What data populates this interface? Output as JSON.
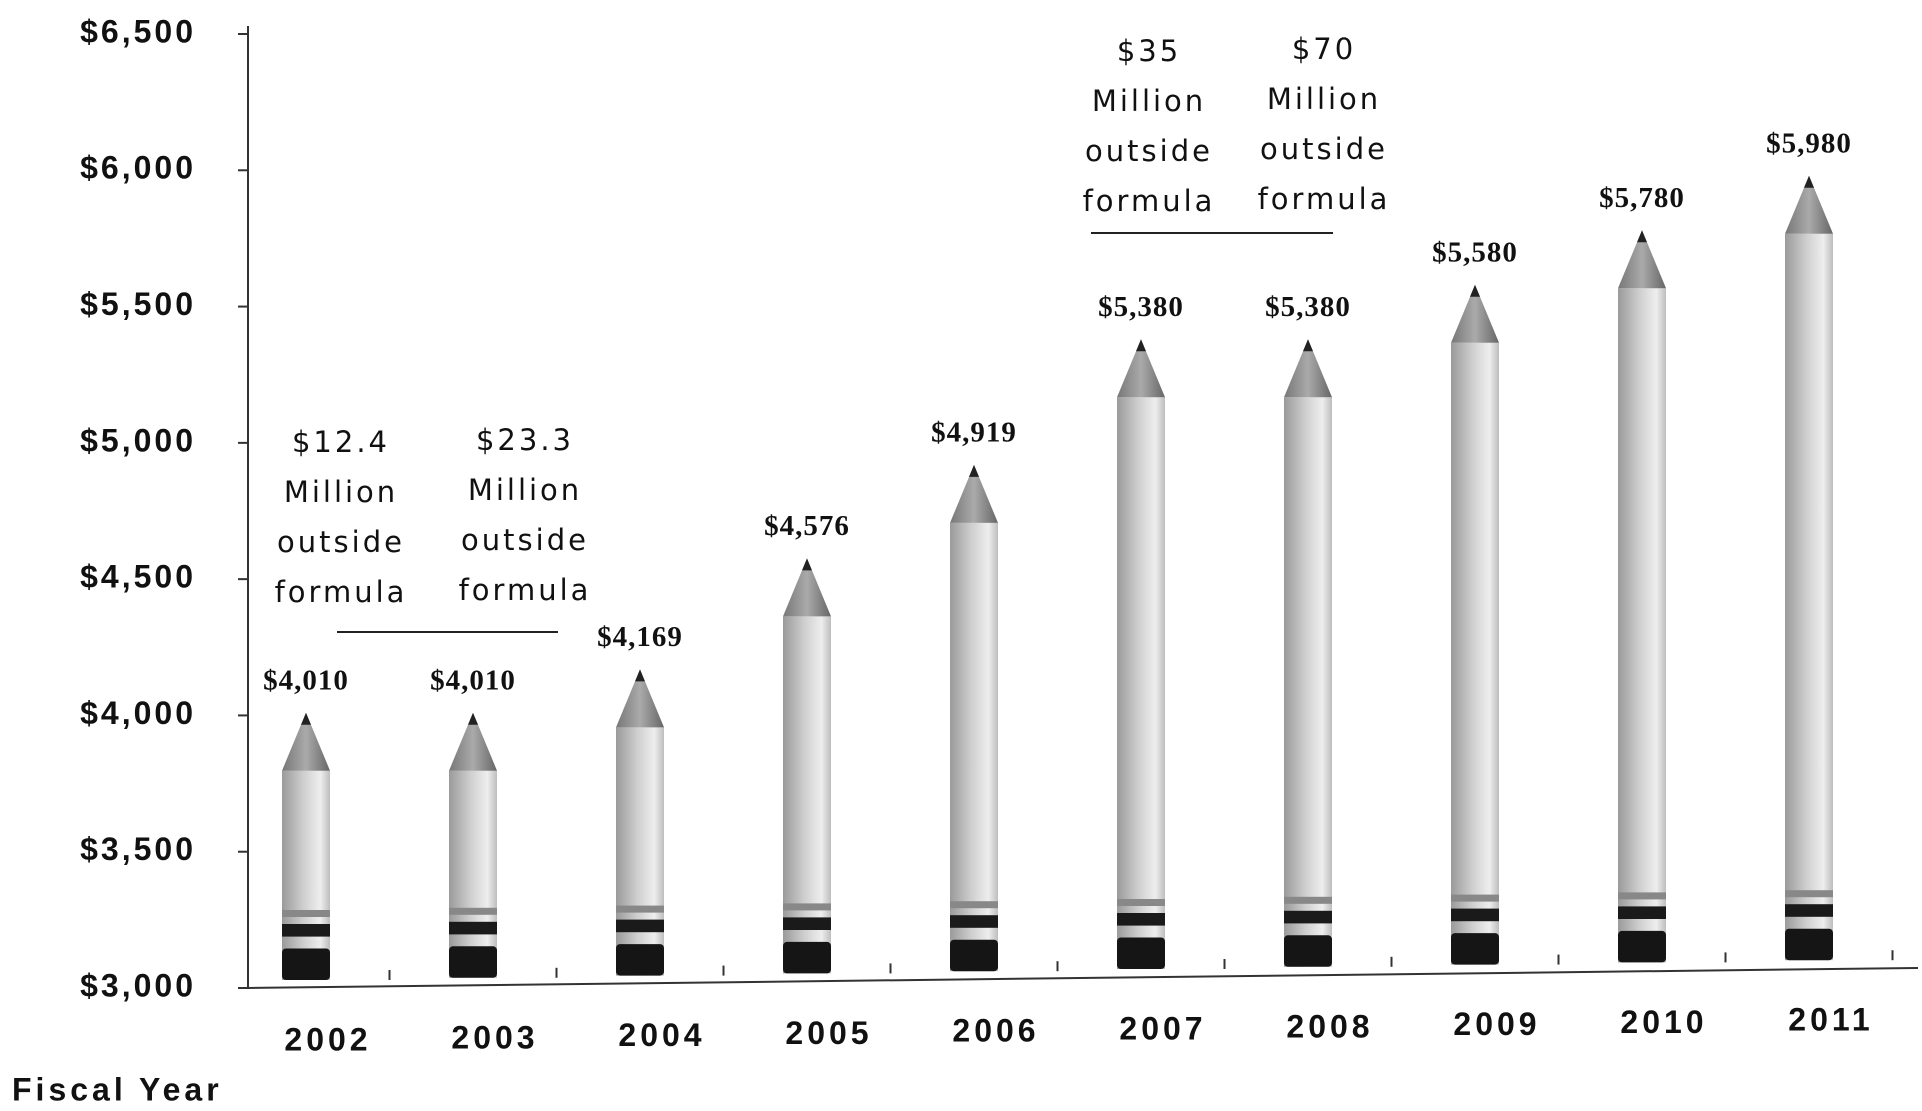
{
  "chart_data": {
    "type": "bar",
    "x_label": "Fiscal Year",
    "categories": [
      "2002",
      "2003",
      "2004",
      "2005",
      "2006",
      "2007",
      "2008",
      "2009",
      "2010",
      "2011"
    ],
    "values": [
      4010,
      4010,
      4169,
      4576,
      4919,
      5380,
      5380,
      5580,
      5780,
      5980
    ],
    "value_labels": [
      "$4,010",
      "$4,010",
      "$4,169",
      "$4,576",
      "$4,919",
      "$5,380",
      "$5,380",
      "$5,580",
      "$5,780",
      "$5,980"
    ],
    "color": "#b8b8b8",
    "ylim": [
      3000,
      6500
    ],
    "yticks": [
      {
        "value": 3000,
        "label": "$3,000"
      },
      {
        "value": 3500,
        "label": "$3,500"
      },
      {
        "value": 4000,
        "label": "$4,000"
      },
      {
        "value": 4500,
        "label": "$4,500"
      },
      {
        "value": 5000,
        "label": "$5,000"
      },
      {
        "value": 5500,
        "label": "$5,500"
      },
      {
        "value": 6000,
        "label": "$6,000"
      },
      {
        "value": 6500,
        "label": "$6,500"
      }
    ],
    "annotations": [
      {
        "lines": [
          "$12.4",
          "Million",
          "outside",
          "formula"
        ]
      },
      {
        "lines": [
          "$23.3",
          "Million",
          "outside",
          "formula"
        ]
      },
      {
        "lines": [
          "$35",
          "Million",
          "outside",
          "formula"
        ]
      },
      {
        "lines": [
          "$70",
          "Million",
          "outside",
          "formula"
        ]
      }
    ]
  }
}
